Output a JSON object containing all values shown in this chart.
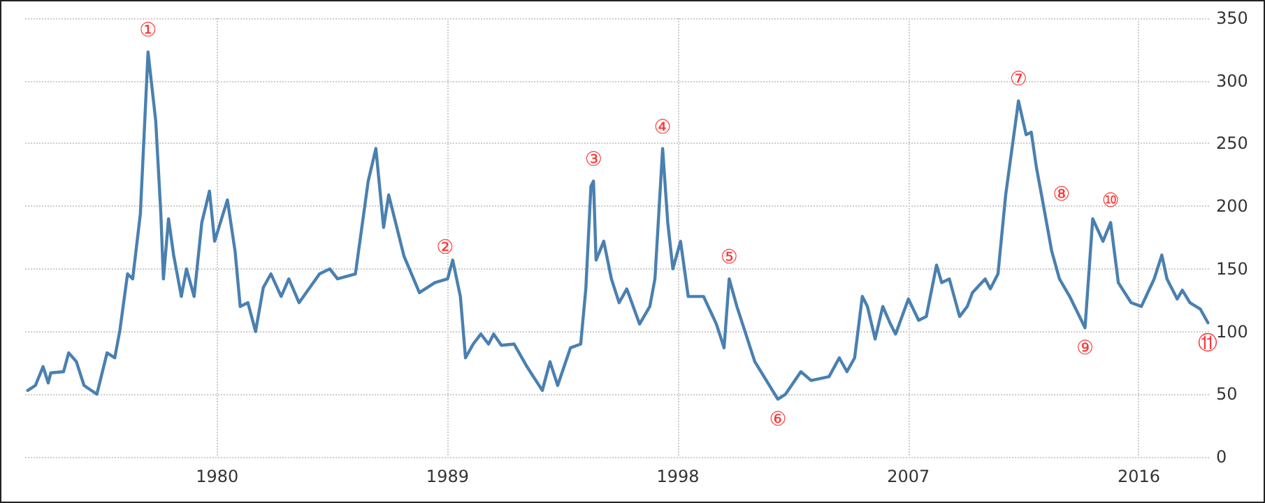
{
  "chart_data": {
    "type": "line",
    "grid": true,
    "marker": "none",
    "line_style": "solid",
    "xlim": [
      1972.5,
      2018.8
    ],
    "xticks": [
      1980,
      1989,
      1998,
      2007,
      2016
    ],
    "ylim": [
      0,
      350
    ],
    "yticks": [
      0,
      50,
      100,
      150,
      200,
      250,
      300,
      350
    ],
    "annotations": [
      {
        "text": "①",
        "x": 1977.3,
        "y": 323
      },
      {
        "text": "②",
        "x": 1988.9,
        "y": 150
      },
      {
        "text": "③",
        "x": 1994.7,
        "y": 220
      },
      {
        "text": "④",
        "x": 1997.4,
        "y": 246
      },
      {
        "text": "⑤",
        "x": 2000.0,
        "y": 142
      },
      {
        "text": "⑥",
        "x": 2001.9,
        "y": 46
      },
      {
        "text": "⑦",
        "x": 2011.3,
        "y": 284
      },
      {
        "text": "⑧",
        "x": 2012.2,
        "y": 209
      },
      {
        "text": "⑨",
        "x": 2013.9,
        "y": 103
      },
      {
        "text": "⑩",
        "x": 2014.9,
        "y": 187
      },
      {
        "text": "⑪",
        "x": 2018.7,
        "y": 107
      }
    ],
    "series": [
      {
        "color": "#4a80b0",
        "x": [
          1972.6,
          1972.9,
          1973.2,
          1973.4,
          1973.5,
          1974.0,
          1974.2,
          1974.5,
          1974.8,
          1975.3,
          1975.7,
          1976.0,
          1976.2,
          1976.5,
          1976.7,
          1977.0,
          1977.3,
          1977.6,
          1977.8,
          1977.9,
          1978.1,
          1978.3,
          1978.6,
          1978.8,
          1979.1,
          1979.4,
          1979.7,
          1979.9,
          1980.4,
          1980.7,
          1980.9,
          1981.2,
          1981.5,
          1981.8,
          1982.1,
          1982.5,
          1982.8,
          1983.2,
          1984.0,
          1984.4,
          1984.7,
          1985.4,
          1985.9,
          1986.2,
          1986.5,
          1986.7,
          1987.3,
          1987.9,
          1988.5,
          1989.0,
          1989.2,
          1989.5,
          1989.7,
          1990.0,
          1990.3,
          1990.6,
          1990.8,
          1991.1,
          1991.6,
          1992.1,
          1992.7,
          1993.0,
          1993.3,
          1993.8,
          1994.2,
          1994.4,
          1994.6,
          1994.7,
          1994.8,
          1995.1,
          1995.4,
          1995.7,
          1996.0,
          1996.5,
          1996.9,
          1997.1,
          1997.4,
          1997.6,
          1997.8,
          1998.1,
          1998.4,
          1999.0,
          1999.5,
          1999.8,
          2000.0,
          2000.3,
          2001.0,
          2001.9,
          2002.2,
          2002.8,
          2003.2,
          2003.9,
          2004.3,
          2004.6,
          2004.9,
          2005.2,
          2005.4,
          2005.7,
          2006.0,
          2006.3,
          2006.5,
          2007.0,
          2007.4,
          2007.7,
          2008.1,
          2008.3,
          2008.6,
          2009.0,
          2009.3,
          2009.5,
          2010.0,
          2010.2,
          2010.5,
          2010.8,
          2011.3,
          2011.6,
          2011.8,
          2012.0,
          2012.2,
          2012.6,
          2012.9,
          2013.3,
          2013.9,
          2014.2,
          2014.6,
          2014.9,
          2015.2,
          2015.7,
          2016.1,
          2016.6,
          2016.9,
          2017.1,
          2017.5,
          2017.7,
          2018.0,
          2018.4,
          2018.7
        ],
        "values": [
          53,
          57,
          72,
          59,
          67,
          68,
          83,
          76,
          57,
          50,
          83,
          79,
          101,
          146,
          142,
          194,
          323,
          268,
          194,
          142,
          190,
          161,
          128,
          150,
          128,
          187,
          212,
          172,
          205,
          164,
          120,
          123,
          100,
          135,
          146,
          128,
          142,
          123,
          146,
          150,
          142,
          146,
          220,
          246,
          183,
          209,
          160,
          131,
          139,
          142,
          157,
          128,
          79,
          90,
          98,
          90,
          98,
          89,
          90,
          72,
          53,
          76,
          57,
          87,
          90,
          134,
          216,
          220,
          157,
          172,
          142,
          123,
          134,
          106,
          120,
          142,
          246,
          187,
          150,
          172,
          128,
          128,
          106,
          87,
          142,
          120,
          76,
          46,
          50,
          68,
          61,
          64,
          79,
          68,
          79,
          128,
          120,
          94,
          120,
          106,
          98,
          126,
          109,
          112,
          153,
          139,
          142,
          112,
          120,
          131,
          142,
          134,
          146,
          209,
          284,
          257,
          259,
          231,
          209,
          164,
          142,
          128,
          103,
          190,
          172,
          187,
          139,
          123,
          120,
          142,
          161,
          142,
          126,
          133,
          123,
          118,
          107
        ]
      }
    ]
  }
}
